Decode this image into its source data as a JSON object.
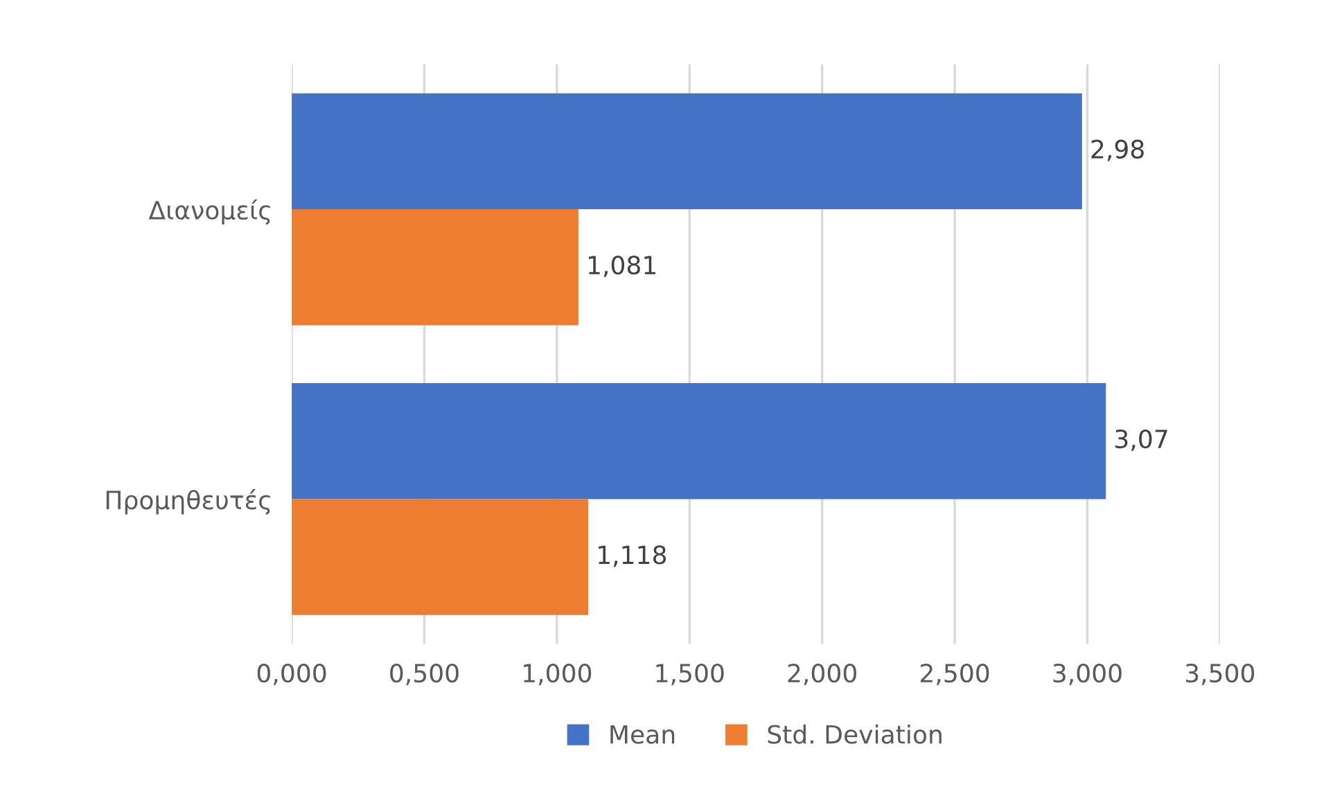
{
  "chart_data": {
    "type": "bar",
    "orientation": "horizontal",
    "categories": [
      "Διανομείς",
      "Προμηθευτές"
    ],
    "series": [
      {
        "name": "Mean",
        "color": "#4472c4",
        "values": [
          2.98,
          3.07
        ],
        "value_labels": [
          "2,98",
          "3,07"
        ]
      },
      {
        "name": "Std. Deviation",
        "color": "#ed7d31",
        "values": [
          1.081,
          1.118
        ],
        "value_labels": [
          "1,081",
          "1,118"
        ]
      }
    ],
    "xlim": [
      0,
      3.5
    ],
    "xticks": [
      {
        "value": 0,
        "label": "0,000"
      },
      {
        "value": 0.5,
        "label": "0,500"
      },
      {
        "value": 1,
        "label": "1,000"
      },
      {
        "value": 1.5,
        "label": "1,500"
      },
      {
        "value": 2,
        "label": "2,000"
      },
      {
        "value": 2.5,
        "label": "2,500"
      },
      {
        "value": 3,
        "label": "3,000"
      },
      {
        "value": 3.5,
        "label": "3,500"
      }
    ],
    "grid": "x",
    "legend": "bottom"
  }
}
